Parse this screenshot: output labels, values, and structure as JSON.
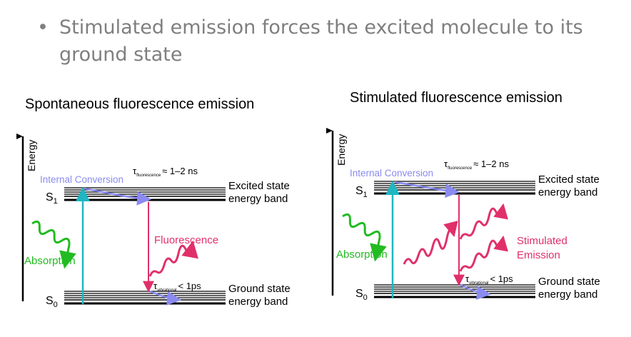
{
  "header": {
    "bullet_symbol": "•",
    "bullet_text": "Stimulated emission forces the excited molecule to its ground state"
  },
  "colors": {
    "absorption": "#22bb22",
    "fluorescence": "#e0306a",
    "internal_conversion": "#8a8af0",
    "absorption_arrow": "#20b6c2",
    "bands": "#000000"
  },
  "left_diagram": {
    "title": "Spontaneous fluorescence emission",
    "energy_label": "Energy",
    "internal_conversion_label": "Internal Conversion",
    "tau_fluor_symbol": "τ",
    "tau_fluor_sub": "fluorescence",
    "tau_fluor_value": "≈ 1–2 ns",
    "s1_letter": "S",
    "s1_sub": "1",
    "s0_letter": "S",
    "s0_sub": "0",
    "excited_line1": "Excited state",
    "excited_line2": "energy band",
    "ground_line1": "Ground state",
    "ground_line2": "energy band",
    "absorption_label": "Absorption",
    "emission_label": "Fluorescence",
    "tau_vib_symbol": "τ",
    "tau_vib_sub": "vibrational",
    "tau_vib_value": "< 1ps"
  },
  "right_diagram": {
    "title": "Stimulated fluorescence emission",
    "energy_label": "Energy",
    "internal_conversion_label": "Internal Conversion",
    "tau_fluor_symbol": "τ",
    "tau_fluor_sub": "fluorescence",
    "tau_fluor_value": "≈ 1–2 ns",
    "s1_letter": "S",
    "s1_sub": "1",
    "s0_letter": "S",
    "s0_sub": "0",
    "excited_line1": "Excited state",
    "excited_line2": "energy band",
    "ground_line1": "Ground state",
    "ground_line2": "energy band",
    "absorption_label": "Absorption",
    "emission_line1": "Stimulated",
    "emission_line2": "Emission",
    "tau_vib_symbol": "τ",
    "tau_vib_sub": "vibrational",
    "tau_vib_value": "< 1ps"
  }
}
